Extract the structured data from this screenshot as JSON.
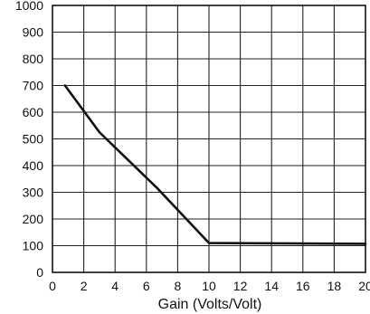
{
  "chart_data": {
    "type": "line",
    "title": "",
    "xlabel": "Gain (Volts/Volt)",
    "ylabel": "",
    "xlim": [
      0,
      20
    ],
    "ylim": [
      0,
      1000
    ],
    "x_ticks": [
      0,
      2,
      4,
      6,
      8,
      10,
      12,
      14,
      16,
      18,
      20
    ],
    "y_ticks": [
      0,
      100,
      200,
      300,
      400,
      500,
      600,
      700,
      800,
      900,
      1000
    ],
    "grid": true,
    "series": [
      {
        "x": [
          0.8,
          3.0,
          6.7,
          10.0,
          20.0
        ],
        "y": [
          700,
          525,
          315,
          110,
          107
        ]
      }
    ]
  }
}
